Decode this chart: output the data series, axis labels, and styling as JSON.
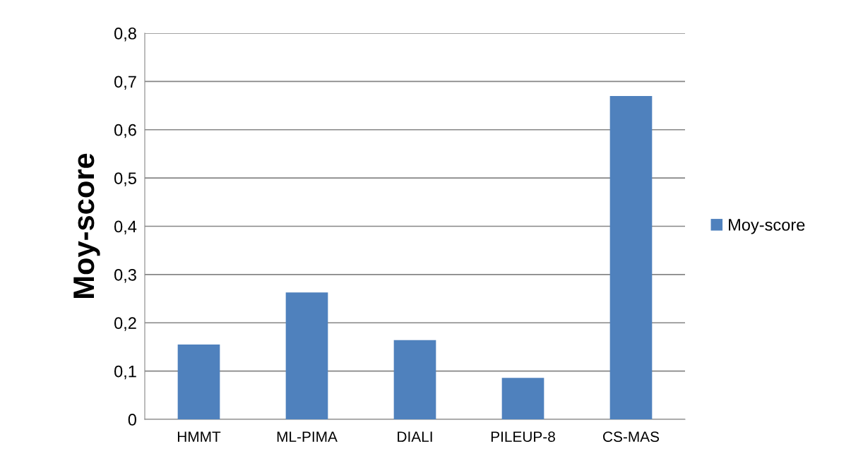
{
  "chart_data": {
    "type": "bar",
    "ylabel": "Moy-score",
    "categories": [
      "HMMT",
      "ML-PIMA",
      "DIALI",
      "PILEUP-8",
      "CS-MAS"
    ],
    "series": [
      {
        "name": "Moy-score",
        "color": "#4f81bd",
        "values": [
          0.155,
          0.263,
          0.164,
          0.086,
          0.67
        ]
      }
    ],
    "ylim": [
      0,
      0.8
    ],
    "yticks": [
      0,
      {
        "value": 0.1,
        "label": "0,1"
      },
      {
        "value": 0.2,
        "label": "0,2"
      },
      {
        "value": 0.3,
        "label": "0,3"
      },
      {
        "value": 0.4,
        "label": "0,4"
      },
      {
        "value": 0.5,
        "label": "0,5"
      },
      {
        "value": 0.6,
        "label": "0,6"
      },
      {
        "value": 0.7,
        "label": "0,7"
      },
      {
        "value": 0.8,
        "label": "0,8"
      }
    ],
    "grid": "y",
    "legend": "right"
  }
}
